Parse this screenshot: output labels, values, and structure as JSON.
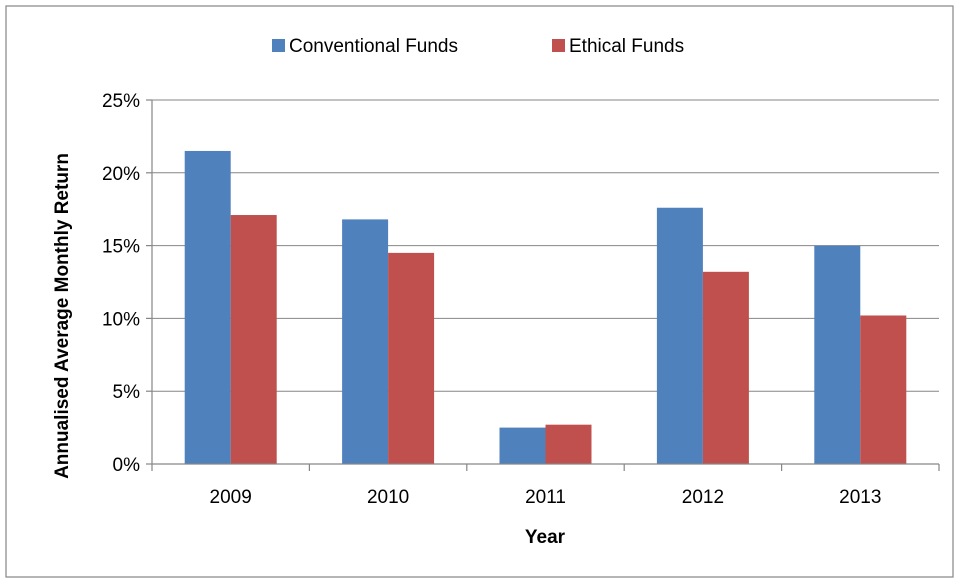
{
  "chart_data": {
    "type": "bar",
    "title": "",
    "xlabel": "Year",
    "ylabel": "Annualised Average Monthly Return",
    "categories": [
      "2009",
      "2010",
      "2011",
      "2012",
      "2013"
    ],
    "series": [
      {
        "name": "Conventional Funds",
        "color": "#4F81BD",
        "values": [
          21.5,
          16.8,
          2.5,
          17.6,
          15.0
        ]
      },
      {
        "name": "Ethical Funds",
        "color": "#C0504D",
        "values": [
          17.1,
          14.5,
          2.7,
          13.2,
          10.2
        ]
      }
    ],
    "ylim": [
      0,
      25
    ],
    "yticks": [
      0,
      5,
      10,
      15,
      20,
      25
    ],
    "ytick_labels": [
      "0%",
      "5%",
      "10%",
      "15%",
      "20%",
      "25%"
    ],
    "grid": true,
    "legend_position": "top"
  },
  "style": {
    "gridline_color": "#868686",
    "axis_color": "#868686",
    "frame_color": "#868686"
  }
}
